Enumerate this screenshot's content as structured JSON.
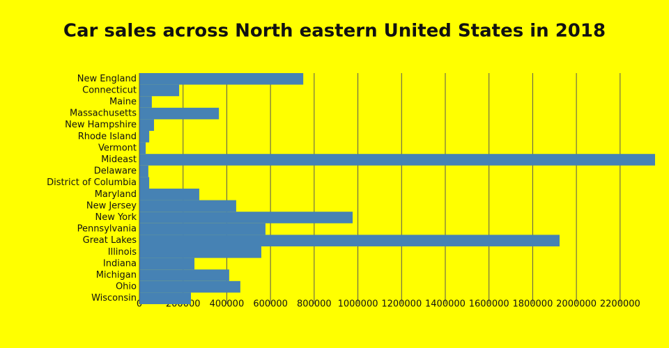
{
  "chart_data": {
    "type": "hbar",
    "title": "Car sales across North eastern United States in 2018",
    "categories": [
      "New England",
      "Connecticut",
      "Maine",
      "Massachusetts",
      "New Hampshire",
      "Rhode Island",
      "Vermont",
      "Mideast",
      "Delaware",
      "District of Columbia",
      "Maryland",
      "New Jersey",
      "New York",
      "Pennsylvania",
      "Great Lakes",
      "Illinois",
      "Indiana",
      "Michigan",
      "Ohio",
      "Wisconsin"
    ],
    "values": [
      750000,
      182000,
      57000,
      364000,
      67000,
      45000,
      29000,
      2360000,
      41000,
      45000,
      274000,
      443000,
      976000,
      577000,
      1923000,
      558000,
      252000,
      411000,
      462000,
      236000
    ],
    "color": "#4682b4",
    "xlim": [
      0,
      2360000
    ],
    "xticks": [
      0,
      200000,
      400000,
      600000,
      800000,
      1000000,
      1200000,
      1400000,
      1600000,
      1800000,
      2000000,
      2200000
    ],
    "grid": true
  }
}
